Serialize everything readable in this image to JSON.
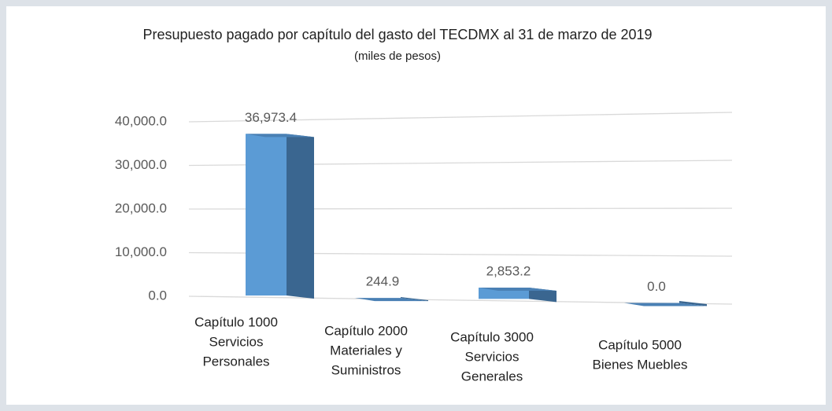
{
  "chart_data": {
    "type": "bar",
    "title": "Presupuesto pagado por capítulo del gasto del TECDMX al 31 de marzo de 2019",
    "subtitle": "(miles de pesos)",
    "categories": [
      [
        "Capítulo 1000",
        "Servicios",
        "Personales"
      ],
      [
        "Capítulo 2000",
        "Materiales y",
        "Suministros"
      ],
      [
        "Capítulo 3000",
        "Servicios",
        "Generales"
      ],
      [
        "Capítulo 5000",
        "Bienes Muebles"
      ]
    ],
    "values": [
      36973.4,
      244.9,
      2853.2,
      0.0
    ],
    "value_labels": [
      "36,973.4",
      "244.9",
      "2,853.2",
      "0.0"
    ],
    "color": "#5b9bd5",
    "ylim": [
      0,
      40000
    ],
    "yticks": [
      {
        "value": 0,
        "label": "0.0"
      },
      {
        "value": 10000,
        "label": "10,000.0"
      },
      {
        "value": 20000,
        "label": "20,000.0"
      },
      {
        "value": 30000,
        "label": "30,000.0"
      },
      {
        "value": 40000,
        "label": "40,000.0"
      }
    ],
    "grid": true
  }
}
